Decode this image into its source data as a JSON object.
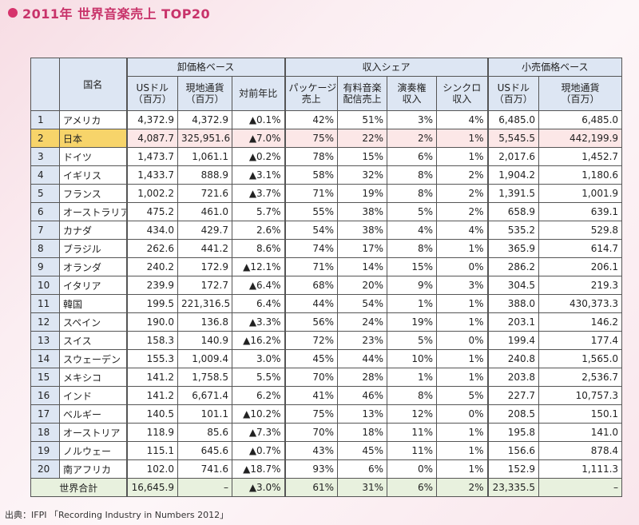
{
  "title": "2011年 世界音楽売上 TOP20",
  "source": "出典：IFPI 「Recording Industry in Numbers 2012」",
  "colors": {
    "title": "#c8336a",
    "header_bg": "#dde6f3",
    "japan_highlight": "#f7d46a",
    "japan_row": "#fce7e7",
    "total_row": "#e8f1de"
  },
  "chart_data": {
    "type": "table",
    "title": "2011年 世界音楽売上 TOP20",
    "groups": [
      {
        "label": "卸価格ベース",
        "columns": [
          "USドル\n（百万）",
          "現地通貨\n（百万）",
          "対前年比"
        ]
      },
      {
        "label": "収入シェア",
        "columns": [
          "パッケージ\n売上",
          "有料音楽\n配信売上",
          "演奏権\n収入",
          "シンクロ\n収入"
        ]
      },
      {
        "label": "小売価格ベース",
        "columns": [
          "USドル\n（百万）",
          "現地通貨\n（百万）"
        ]
      }
    ],
    "country_header": "国名",
    "rows": [
      {
        "rank": "1",
        "country": "アメリカ",
        "w_usd": "4,372.9",
        "w_local": "4,372.9",
        "yoy": "▲0.1%",
        "pkg": "42%",
        "dl": "51%",
        "perf": "3%",
        "sync": "4%",
        "r_usd": "6,485.0",
        "r_local": "6,485.0"
      },
      {
        "rank": "2",
        "country": "日本",
        "w_usd": "4,087.7",
        "w_local": "325,951.6",
        "yoy": "▲7.0%",
        "pkg": "75%",
        "dl": "22%",
        "perf": "2%",
        "sync": "1%",
        "r_usd": "5,545.5",
        "r_local": "442,199.9",
        "highlight": true
      },
      {
        "rank": "3",
        "country": "ドイツ",
        "w_usd": "1,473.7",
        "w_local": "1,061.1",
        "yoy": "▲0.2%",
        "pkg": "78%",
        "dl": "15%",
        "perf": "6%",
        "sync": "1%",
        "r_usd": "2,017.6",
        "r_local": "1,452.7"
      },
      {
        "rank": "4",
        "country": "イギリス",
        "w_usd": "1,433.7",
        "w_local": "888.9",
        "yoy": "▲3.1%",
        "pkg": "58%",
        "dl": "32%",
        "perf": "8%",
        "sync": "2%",
        "r_usd": "1,904.2",
        "r_local": "1,180.6"
      },
      {
        "rank": "5",
        "country": "フランス",
        "w_usd": "1,002.2",
        "w_local": "721.6",
        "yoy": "▲3.7%",
        "pkg": "71%",
        "dl": "19%",
        "perf": "8%",
        "sync": "2%",
        "r_usd": "1,391.5",
        "r_local": "1,001.9"
      },
      {
        "rank": "6",
        "country": "オーストラリア",
        "w_usd": "475.2",
        "w_local": "461.0",
        "yoy": "5.7%",
        "pkg": "55%",
        "dl": "38%",
        "perf": "5%",
        "sync": "2%",
        "r_usd": "658.9",
        "r_local": "639.1"
      },
      {
        "rank": "7",
        "country": "カナダ",
        "w_usd": "434.0",
        "w_local": "429.7",
        "yoy": "2.6%",
        "pkg": "54%",
        "dl": "38%",
        "perf": "4%",
        "sync": "4%",
        "r_usd": "535.2",
        "r_local": "529.8"
      },
      {
        "rank": "8",
        "country": "ブラジル",
        "w_usd": "262.6",
        "w_local": "441.2",
        "yoy": "8.6%",
        "pkg": "74%",
        "dl": "17%",
        "perf": "8%",
        "sync": "1%",
        "r_usd": "365.9",
        "r_local": "614.7"
      },
      {
        "rank": "9",
        "country": "オランダ",
        "w_usd": "240.2",
        "w_local": "172.9",
        "yoy": "▲12.1%",
        "pkg": "71%",
        "dl": "14%",
        "perf": "15%",
        "sync": "0%",
        "r_usd": "286.2",
        "r_local": "206.1"
      },
      {
        "rank": "10",
        "country": "イタリア",
        "w_usd": "239.9",
        "w_local": "172.7",
        "yoy": "▲6.4%",
        "pkg": "68%",
        "dl": "20%",
        "perf": "9%",
        "sync": "3%",
        "r_usd": "304.5",
        "r_local": "219.3"
      },
      {
        "rank": "11",
        "country": "韓国",
        "w_usd": "199.5",
        "w_local": "221,316.5",
        "yoy": "6.4%",
        "pkg": "44%",
        "dl": "54%",
        "perf": "1%",
        "sync": "1%",
        "r_usd": "388.0",
        "r_local": "430,373.3"
      },
      {
        "rank": "12",
        "country": "スペイン",
        "w_usd": "190.0",
        "w_local": "136.8",
        "yoy": "▲3.3%",
        "pkg": "56%",
        "dl": "24%",
        "perf": "19%",
        "sync": "1%",
        "r_usd": "203.1",
        "r_local": "146.2"
      },
      {
        "rank": "13",
        "country": "スイス",
        "w_usd": "158.3",
        "w_local": "140.9",
        "yoy": "▲16.2%",
        "pkg": "72%",
        "dl": "23%",
        "perf": "5%",
        "sync": "0%",
        "r_usd": "199.4",
        "r_local": "177.4"
      },
      {
        "rank": "14",
        "country": "スウェーデン",
        "w_usd": "155.3",
        "w_local": "1,009.4",
        "yoy": "3.0%",
        "pkg": "45%",
        "dl": "44%",
        "perf": "10%",
        "sync": "1%",
        "r_usd": "240.8",
        "r_local": "1,565.0"
      },
      {
        "rank": "15",
        "country": "メキシコ",
        "w_usd": "141.2",
        "w_local": "1,758.5",
        "yoy": "5.5%",
        "pkg": "70%",
        "dl": "28%",
        "perf": "1%",
        "sync": "1%",
        "r_usd": "203.8",
        "r_local": "2,536.7"
      },
      {
        "rank": "16",
        "country": "インド",
        "w_usd": "141.2",
        "w_local": "6,671.4",
        "yoy": "6.2%",
        "pkg": "41%",
        "dl": "46%",
        "perf": "8%",
        "sync": "5%",
        "r_usd": "227.7",
        "r_local": "10,757.3"
      },
      {
        "rank": "17",
        "country": "ベルギー",
        "w_usd": "140.5",
        "w_local": "101.1",
        "yoy": "▲10.2%",
        "pkg": "75%",
        "dl": "13%",
        "perf": "12%",
        "sync": "0%",
        "r_usd": "208.5",
        "r_local": "150.1"
      },
      {
        "rank": "18",
        "country": "オーストリア",
        "w_usd": "118.9",
        "w_local": "85.6",
        "yoy": "▲7.3%",
        "pkg": "70%",
        "dl": "18%",
        "perf": "11%",
        "sync": "1%",
        "r_usd": "195.8",
        "r_local": "141.0"
      },
      {
        "rank": "19",
        "country": "ノルウェー",
        "w_usd": "115.1",
        "w_local": "645.6",
        "yoy": "▲0.7%",
        "pkg": "43%",
        "dl": "45%",
        "perf": "11%",
        "sync": "1%",
        "r_usd": "156.6",
        "r_local": "878.4"
      },
      {
        "rank": "20",
        "country": "南アフリカ",
        "w_usd": "102.0",
        "w_local": "741.6",
        "yoy": "▲18.7%",
        "pkg": "93%",
        "dl": "6%",
        "perf": "0%",
        "sync": "1%",
        "r_usd": "152.9",
        "r_local": "1,111.3"
      }
    ],
    "total": {
      "label": "世界合計",
      "w_usd": "16,645.9",
      "w_local": "–",
      "yoy": "▲3.0%",
      "pkg": "61%",
      "dl": "31%",
      "perf": "6%",
      "sync": "2%",
      "r_usd": "23,335.5",
      "r_local": "–"
    }
  }
}
